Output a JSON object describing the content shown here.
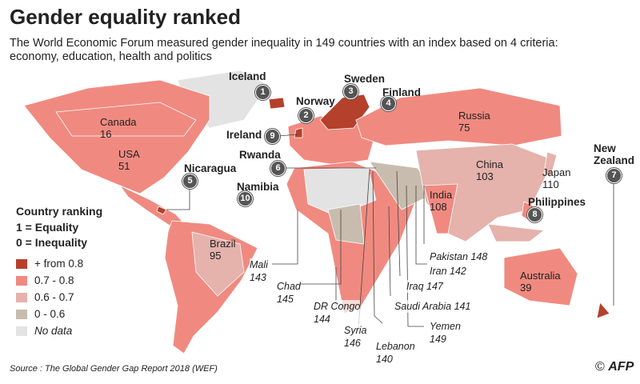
{
  "header": {
    "title": "Gender equality ranked",
    "subtitle": "The World Economic Forum measured gender inequality in 149 countries with an index based on 4 criteria: economy, education, health and politics"
  },
  "countries": [
    {
      "name": "Iceland",
      "rank": 1
    },
    {
      "name": "Norway",
      "rank": 2
    },
    {
      "name": "Sweden",
      "rank": 3
    },
    {
      "name": "Finland",
      "rank": 4
    },
    {
      "name": "Nicaragua",
      "rank": 5
    },
    {
      "name": "Rwanda",
      "rank": 6
    },
    {
      "name": "New Zealand",
      "rank": 7
    },
    {
      "name": "Philippines",
      "rank": 8
    },
    {
      "name": "Ireland",
      "rank": 9
    },
    {
      "name": "Namibia",
      "rank": 10
    },
    {
      "name": "Canada",
      "rank": 16
    },
    {
      "name": "USA",
      "rank": 51
    },
    {
      "name": "Russia",
      "rank": 75
    },
    {
      "name": "China",
      "rank": 103
    },
    {
      "name": "Japan",
      "rank": 110
    },
    {
      "name": "India",
      "rank": 108
    },
    {
      "name": "Brazil",
      "rank": 95
    },
    {
      "name": "Australia",
      "rank": 39
    },
    {
      "name": "Mali",
      "rank": 143
    },
    {
      "name": "Chad",
      "rank": 145
    },
    {
      "name": "DR Congo",
      "rank": 144
    },
    {
      "name": "Syria",
      "rank": 146
    },
    {
      "name": "Lebanon",
      "rank": 140
    },
    {
      "name": "Yemen",
      "rank": 149
    },
    {
      "name": "Saudi Arabia",
      "rank": 141
    },
    {
      "name": "Iraq",
      "rank": 147
    },
    {
      "name": "Iran",
      "rank": 142
    },
    {
      "name": "Pakistan",
      "rank": 148
    }
  ],
  "legend": {
    "title": "Country ranking",
    "scale": [
      "1 = Equality",
      "0 = Inequality"
    ],
    "items": [
      {
        "label": "+ from 0.8",
        "color": "#b5402b"
      },
      {
        "label": "0.7 - 0.8",
        "color": "#f08a80"
      },
      {
        "label": "0.6 - 0.7",
        "color": "#e5b2ac"
      },
      {
        "label": "0 - 0.6",
        "color": "#c8bcae"
      },
      {
        "label": "No data",
        "color": "#e3e3e3"
      }
    ]
  },
  "footer": {
    "source": "Source : The Global Gender Gap Report 2018 (WEF)",
    "logo": "AFP"
  }
}
